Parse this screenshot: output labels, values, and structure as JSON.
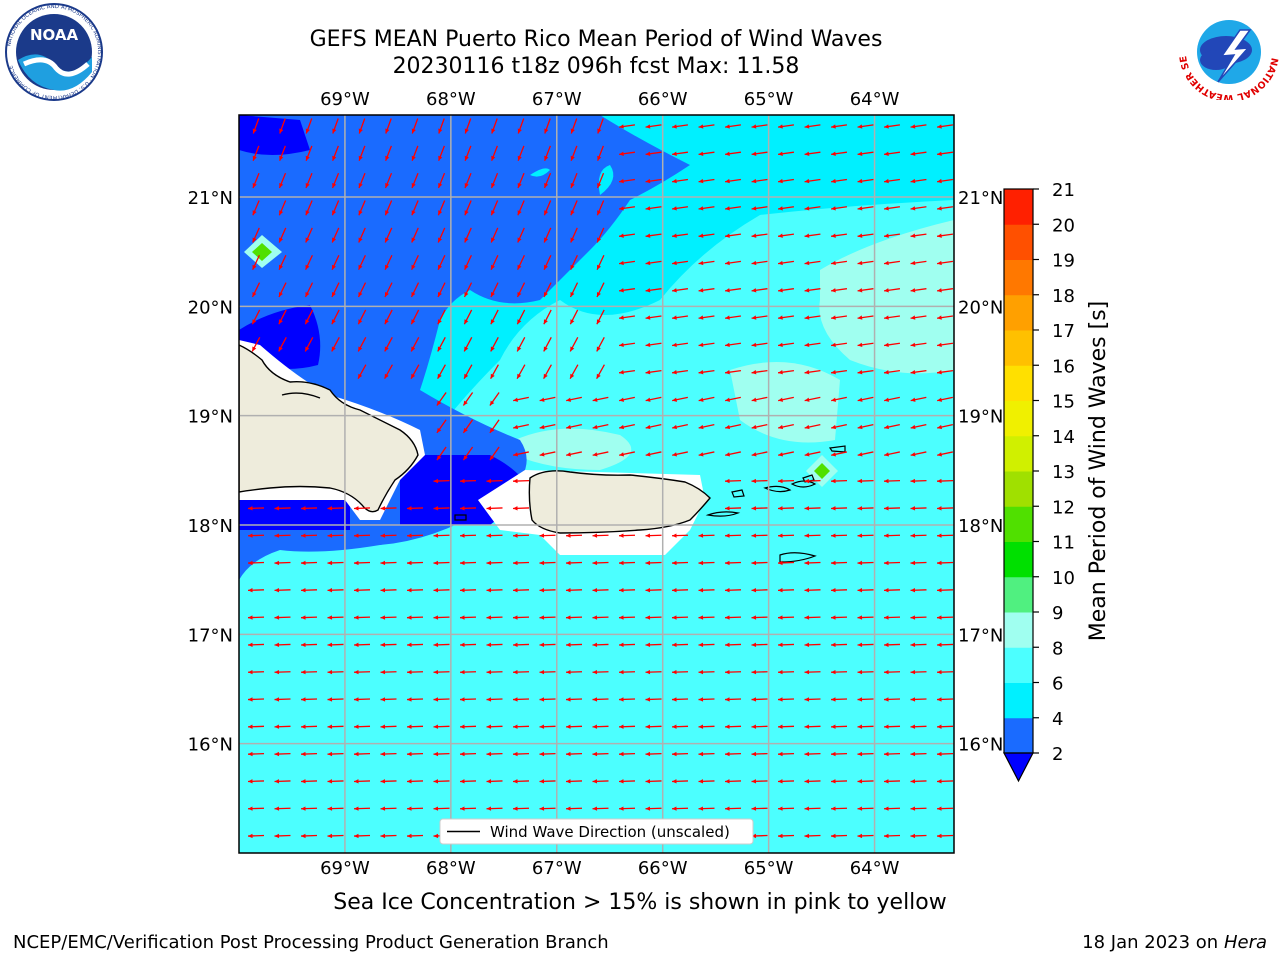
{
  "title": {
    "line1": "GEFS MEAN Puerto Rico Mean Period of Wind Waves",
    "line2": "20230116 t18z 096h fcst   Max: 11.58"
  },
  "subtitle": "Sea Ice Concentration > 15% is shown in pink to yellow",
  "footer": {
    "left": "NCEP/EMC/Verification Post Processing Product Generation Branch",
    "date": "18 Jan 2023 on ",
    "host": "Hera"
  },
  "logos": {
    "noaa": {
      "text": "NOAA",
      "ring_text": "NATIONAL OCEANIC AND ATMOSPHERIC ADMINISTRATION · U.S. DEPARTMENT OF COMMERCE"
    },
    "nws": {
      "ring_text": "NATIONAL WEATHER SERVICE"
    }
  },
  "legend": {
    "label": "Wind Wave Direction (unscaled)"
  },
  "chart_data": {
    "type": "heatmap",
    "title": "GEFS MEAN Puerto Rico Mean Period of Wind Waves",
    "field": "Mean Period of Wind Waves",
    "max_value": 11.58,
    "lon_range": [
      -70.0,
      -63.25
    ],
    "lat_range": [
      15.0,
      21.75
    ],
    "lon_ticks": [
      -69,
      -68,
      -67,
      -66,
      -65,
      -64
    ],
    "lat_ticks": [
      16,
      17,
      18,
      19,
      20,
      21
    ],
    "lon_tick_labels": [
      "69°W",
      "68°W",
      "67°W",
      "66°W",
      "65°W",
      "64°W"
    ],
    "lat_tick_labels": [
      "16°N",
      "17°N",
      "18°N",
      "19°N",
      "20°N",
      "21°N"
    ],
    "grid": true,
    "colorbar": {
      "label": "Mean Period of Wind Waves [s]",
      "ticks": [
        2,
        4,
        6,
        8,
        9,
        10,
        11,
        12,
        13,
        14,
        15,
        16,
        17,
        18,
        19,
        20,
        21
      ],
      "colors": [
        "#1a6bff",
        "#00f0ff",
        "#4cffff",
        "#a0fff0",
        "#50f080",
        "#00e000",
        "#50e000",
        "#a0e000",
        "#d0f000",
        "#f0f000",
        "#ffe000",
        "#ffc000",
        "#ffa000",
        "#ff7800",
        "#ff5000",
        "#ff2000",
        "#ff0000"
      ],
      "under_color": "#0000ff",
      "extend": "min"
    },
    "vector_field": {
      "name": "Wind Wave Direction (unscaled)",
      "color": "#ff0000",
      "regions": [
        {
          "area": "north of 19.2°N",
          "direction": "south-southwest"
        },
        {
          "area": "18.5°N to 19.2°N",
          "direction": "west-southwest"
        },
        {
          "area": "south of 18.5°N",
          "direction": "west"
        }
      ]
    },
    "colors": {
      "land": "#eeecdc",
      "open_water": "#4cffff",
      "deep_blue_zone": "#1a6bff",
      "darkest_zone": "#0000ff",
      "light_zone": "#a0fff0",
      "arrow": "#ff0000"
    }
  }
}
